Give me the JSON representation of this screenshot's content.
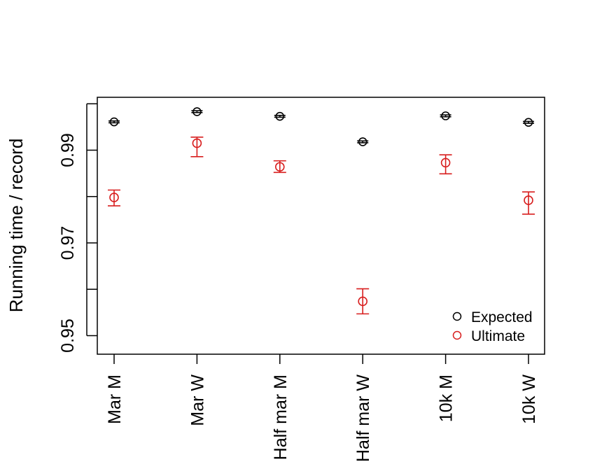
{
  "chart_data": {
    "type": "scatter",
    "title": "",
    "xlabel": "",
    "ylabel": "Running time / record",
    "ylim": [
      0.946,
      1.0014
    ],
    "yticks": [
      0.95,
      0.96,
      0.97,
      0.98,
      0.99,
      1.0
    ],
    "ytick_labels": [
      "0.95",
      "",
      "0.97",
      "",
      "0.99",
      ""
    ],
    "categories": [
      "Mar M",
      "Mar W",
      "Half mar M",
      "Half mar W",
      "10k M",
      "10k W"
    ],
    "series": [
      {
        "name": "Expected",
        "color": "#000000",
        "marker": "open-circle",
        "values": [
          0.9961,
          0.9983,
          0.9973,
          0.9918,
          0.9974,
          0.996
        ],
        "lower": [
          0.9959,
          0.9981,
          0.9971,
          0.9916,
          0.9972,
          0.9958
        ],
        "upper": [
          0.9963,
          0.9985,
          0.9975,
          0.992,
          0.9976,
          0.9962
        ]
      },
      {
        "name": "Ultimate",
        "color": "#d81e1e",
        "marker": "open-circle",
        "values": [
          0.9798,
          0.9915,
          0.9864,
          0.9574,
          0.9873,
          0.9792
        ],
        "lower": [
          0.978,
          0.9886,
          0.9852,
          0.9547,
          0.9849,
          0.9762
        ],
        "upper": [
          0.9814,
          0.9928,
          0.9877,
          0.9601,
          0.989,
          0.981
        ]
      }
    ],
    "legend_position": "bottom-right",
    "grid": false
  }
}
